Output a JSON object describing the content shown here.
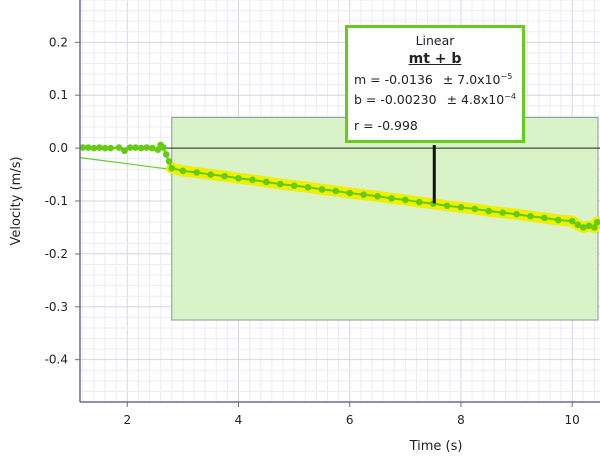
{
  "chart_data": {
    "type": "scatter",
    "xlabel": "Time (s)",
    "ylabel": "Velocity (m/s)",
    "xlim": [
      1.15,
      10.5
    ],
    "ylim": [
      -0.48,
      0.28
    ],
    "x_ticks": [
      2,
      4,
      6,
      8,
      10
    ],
    "y_ticks": [
      0.2,
      0.1,
      0.0,
      -0.1,
      -0.2,
      -0.3,
      -0.4
    ],
    "x_tick_labels": [
      "2",
      "4",
      "6",
      "8",
      "10"
    ],
    "y_tick_labels": [
      "0.2",
      "0.1",
      "0.0",
      "-0.1",
      "-0.2",
      "-0.3",
      "-0.4"
    ],
    "grid": true,
    "series": [
      {
        "color": "#66cc11",
        "highlight_color": "#eef000",
        "points": [
          [
            1.2,
            0.001
          ],
          [
            1.3,
            0.001
          ],
          [
            1.4,
            0.0
          ],
          [
            1.5,
            0.001
          ],
          [
            1.6,
            0.0
          ],
          [
            1.7,
            0.0
          ],
          [
            1.85,
            0.001
          ],
          [
            1.95,
            -0.005
          ],
          [
            2.05,
            0.001
          ],
          [
            2.15,
            0.001
          ],
          [
            2.25,
            0.0
          ],
          [
            2.35,
            0.001
          ],
          [
            2.45,
            0.0
          ],
          [
            2.55,
            -0.003
          ],
          [
            2.6,
            0.006
          ],
          [
            2.65,
            0.001
          ],
          [
            2.7,
            -0.012
          ],
          [
            2.75,
            -0.025
          ],
          [
            2.8,
            -0.038
          ],
          [
            3.0,
            -0.043
          ],
          [
            3.25,
            -0.046
          ],
          [
            3.5,
            -0.05
          ],
          [
            3.75,
            -0.053
          ],
          [
            4.0,
            -0.057
          ],
          [
            4.25,
            -0.06
          ],
          [
            4.5,
            -0.064
          ],
          [
            4.75,
            -0.068
          ],
          [
            5.0,
            -0.071
          ],
          [
            5.25,
            -0.074
          ],
          [
            5.5,
            -0.078
          ],
          [
            5.75,
            -0.081
          ],
          [
            6.0,
            -0.085
          ],
          [
            6.25,
            -0.088
          ],
          [
            6.5,
            -0.091
          ],
          [
            6.75,
            -0.095
          ],
          [
            7.0,
            -0.098
          ],
          [
            7.25,
            -0.102
          ],
          [
            7.5,
            -0.105
          ],
          [
            7.75,
            -0.109
          ],
          [
            8.0,
            -0.112
          ],
          [
            8.25,
            -0.115
          ],
          [
            8.5,
            -0.119
          ],
          [
            8.75,
            -0.122
          ],
          [
            9.0,
            -0.125
          ],
          [
            9.25,
            -0.129
          ],
          [
            9.5,
            -0.132
          ],
          [
            9.75,
            -0.136
          ],
          [
            10.0,
            -0.138
          ],
          [
            10.1,
            -0.145
          ],
          [
            10.2,
            -0.15
          ],
          [
            10.3,
            -0.147
          ],
          [
            10.4,
            -0.15
          ],
          [
            10.45,
            -0.14
          ]
        ],
        "selection_start_x": 2.8
      }
    ],
    "selection_region": {
      "x": [
        2.8,
        10.5
      ],
      "y": [
        -0.325,
        0.058
      ],
      "color": "#d9f2c7"
    },
    "fit": {
      "title": "Linear",
      "equation": "mt + b",
      "m_label": "m = -0.0136",
      "m_unc_base": "± 7.0x10",
      "m_unc_exp": "−5",
      "b_label": "b  = -0.00230",
      "b_unc_base": "± 4.8x10",
      "b_unc_exp": "−4",
      "r_label": "r = -0.998",
      "m": -0.0136,
      "b": -0.0023,
      "line_x": [
        1.15,
        10.5
      ],
      "line_color": "#66cc22",
      "pointer_x": 7.52
    }
  }
}
